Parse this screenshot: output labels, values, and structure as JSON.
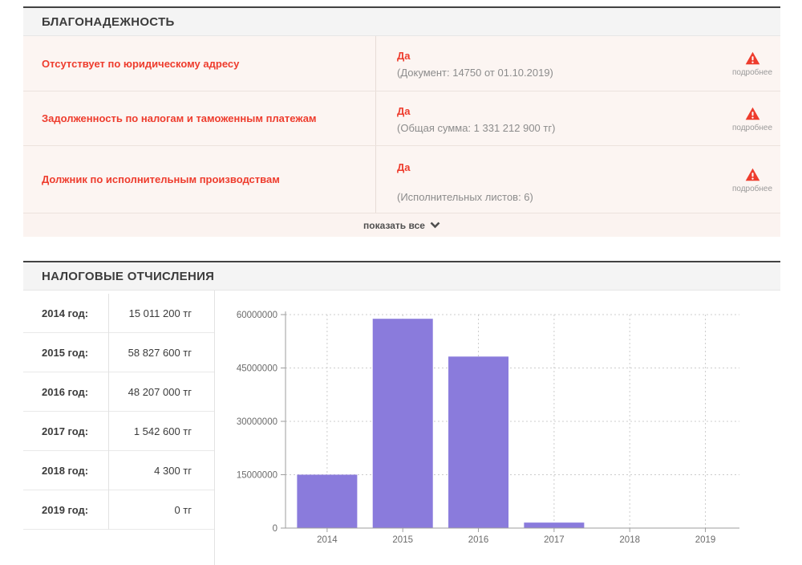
{
  "reliability": {
    "title": "БЛАГОНАДЕЖНОСТЬ",
    "more_label": "подробнее",
    "show_all": "показать все",
    "rows": [
      {
        "label": "Отсутствует по юридическому адресу",
        "value": "Да",
        "detail": "(Документ: 14750 от 01.10.2019)"
      },
      {
        "label": "Задолженность по налогам и таможенным платежам",
        "value": "Да",
        "detail": "(Общая сумма: 1 331 212 900 тг)"
      },
      {
        "label": "Должник по исполнительным производствам",
        "value": "Да",
        "detail": "(Исполнительных листов: 6)"
      }
    ]
  },
  "taxes": {
    "title": "НАЛОГОВЫЕ ОТЧИСЛЕНИЯ",
    "rows": [
      {
        "year": "2014 год:",
        "amount": "15 011 200 тг"
      },
      {
        "year": "2015 год:",
        "amount": "58 827 600 тг"
      },
      {
        "year": "2016 год:",
        "amount": "48 207 000 тг"
      },
      {
        "year": "2017 год:",
        "amount": "1 542 600 тг"
      },
      {
        "year": "2018 год:",
        "amount": "4 300 тг"
      },
      {
        "year": "2019 год:",
        "amount": "0 тг"
      }
    ]
  },
  "chart_data": {
    "type": "bar",
    "title": "",
    "xlabel": "",
    "ylabel": "",
    "categories": [
      "2014",
      "2015",
      "2016",
      "2017",
      "2018",
      "2019"
    ],
    "values": [
      15011200,
      58827600,
      48207000,
      1542600,
      4300,
      0
    ],
    "yticks": [
      0,
      15000000,
      30000000,
      45000000,
      60000000
    ],
    "ylim": [
      0,
      60000000
    ],
    "grid": "dotted",
    "legend": "none",
    "bar_color": "#8a7bdc",
    "axis_color": "#9e9e9e",
    "grid_color": "#cccccc",
    "label_color": "#6b6b6b"
  },
  "colors": {
    "alert_red": "#ee3c2d",
    "row_bg": "#fcf5f2",
    "header_bg": "#f4f4f4"
  }
}
